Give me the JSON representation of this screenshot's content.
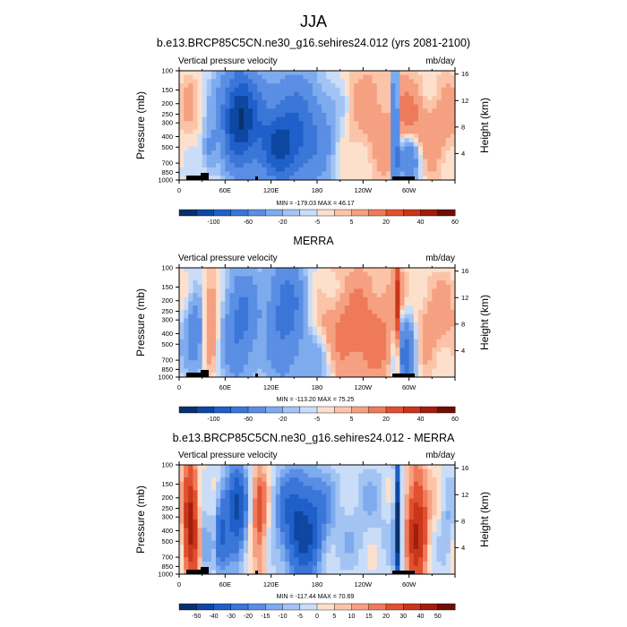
{
  "figure_title": "JJA",
  "chart_data": [
    {
      "type": "heatmap",
      "title": "b.e13.BRCP85C5CN.ne30_g16.sehires24.012 (yrs 2081-2100)",
      "left_label": "Vertical pressure velocity",
      "right_label": "mb/day",
      "ylabel": "Pressure (mb)",
      "y2label": "Height (km)",
      "yticks": [
        "100",
        "150",
        "200",
        "250",
        "300",
        "400",
        "500",
        "700",
        "850",
        "1000"
      ],
      "y2ticks": [
        "16",
        "12",
        "8",
        "4"
      ],
      "xticks": [
        "0",
        "60E",
        "120E",
        "180",
        "120W",
        "60W"
      ],
      "stats": "MIN = -179.03  MAX =  46.17",
      "colorbar_labels": [
        "-100",
        "-60",
        "-20",
        "-5",
        "5",
        "20",
        "40",
        "60"
      ],
      "levels": [
        -120,
        -100,
        -80,
        -60,
        -40,
        -20,
        -10,
        -5,
        0,
        5,
        10,
        20,
        30,
        40,
        50,
        60,
        70
      ]
    },
    {
      "type": "heatmap",
      "title": "MERRA",
      "left_label": "Vertical pressure velocity",
      "right_label": "mb/day",
      "ylabel": "Pressure (mb)",
      "y2label": "Height (km)",
      "yticks": [
        "100",
        "150",
        "200",
        "250",
        "300",
        "400",
        "500",
        "700",
        "850",
        "1000"
      ],
      "y2ticks": [
        "16",
        "12",
        "8",
        "4"
      ],
      "xticks": [
        "0",
        "60E",
        "120E",
        "180",
        "120W",
        "60W"
      ],
      "stats": "MIN = -113.20  MAX =  75.25",
      "colorbar_labels": [
        "-100",
        "-60",
        "-20",
        "-5",
        "5",
        "20",
        "40",
        "60"
      ],
      "levels": [
        -120,
        -100,
        -80,
        -60,
        -40,
        -20,
        -10,
        -5,
        0,
        5,
        10,
        20,
        30,
        40,
        50,
        60,
        70
      ]
    },
    {
      "type": "heatmap",
      "title": "b.e13.BRCP85C5CN.ne30_g16.sehires24.012 - MERRA",
      "left_label": "Vertical pressure velocity",
      "right_label": "mb/day",
      "ylabel": "Pressure (mb)",
      "y2label": "Height (km)",
      "yticks": [
        "100",
        "150",
        "200",
        "250",
        "300",
        "400",
        "500",
        "700",
        "850",
        "1000"
      ],
      "y2ticks": [
        "16",
        "12",
        "8",
        "4"
      ],
      "xticks": [
        "0",
        "60E",
        "120E",
        "180",
        "120W",
        "60W"
      ],
      "stats": "MIN = -117.44  MAX =  70.69",
      "colorbar_labels": [
        "-50",
        "-40",
        "-30",
        "-20",
        "-15",
        "-10",
        "-5",
        "0",
        "5",
        "10",
        "15",
        "20",
        "30",
        "40",
        "50"
      ],
      "levels": [
        -60,
        -50,
        -40,
        -30,
        -20,
        -15,
        -10,
        -5,
        0,
        5,
        10,
        15,
        20,
        30,
        40,
        50,
        60
      ]
    }
  ],
  "colors": {
    "palette": [
      "#08306b",
      "#0d47a1",
      "#1f5fc9",
      "#3a76d8",
      "#5a8ee4",
      "#7eaaee",
      "#a3c4f3",
      "#c9ddf8",
      "#fde0cc",
      "#fbc4a8",
      "#f6a082",
      "#ef7a5a",
      "#e1502f",
      "#c9361a",
      "#a31d0c",
      "#6e0f04"
    ]
  }
}
